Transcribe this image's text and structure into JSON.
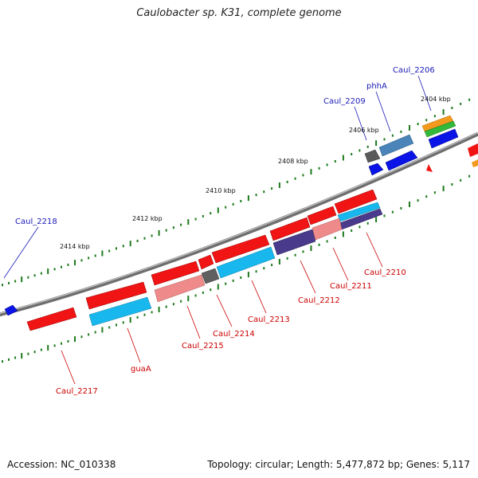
{
  "title": "Caulobacter sp. K31, complete genome",
  "footer": {
    "accession": "Accession: NC_010338",
    "summary": "Topology: circular; Length: 5,477,872 bp; Genes: 5,117"
  },
  "scale_ticks": [
    {
      "text": "2404 kbp"
    },
    {
      "text": "2406 kbp"
    },
    {
      "text": "2408 kbp"
    },
    {
      "text": "2410 kbp"
    },
    {
      "text": "2412 kbp"
    },
    {
      "text": "2414 kbp"
    }
  ],
  "gene_labels_forward": [
    {
      "text": "Caul_2206"
    },
    {
      "text": "phhA"
    },
    {
      "text": "Caul_2209"
    },
    {
      "text": "Caul_2218"
    }
  ],
  "gene_labels_reverse": [
    {
      "text": "Caul_2210"
    },
    {
      "text": "Caul_2211"
    },
    {
      "text": "Caul_2212"
    },
    {
      "text": "Caul_2213"
    },
    {
      "text": "Caul_2214"
    },
    {
      "text": "Caul_2215"
    },
    {
      "text": "guaA"
    },
    {
      "text": "Caul_2217"
    }
  ],
  "colors": {
    "backbone": "#7a7a7a",
    "gene_red": "#f01414",
    "gene_blue": "#0a14e6",
    "gene_cyan": "#18b8ef",
    "gene_pink": "#ef8a8a",
    "gene_navy": "#4a3a8c",
    "gene_grey": "#606060",
    "gene_steel": "#4a84b8",
    "gene_orange": "#f39a1e",
    "gene_green": "#33b83a",
    "tick_green": "#1e7a1e"
  }
}
